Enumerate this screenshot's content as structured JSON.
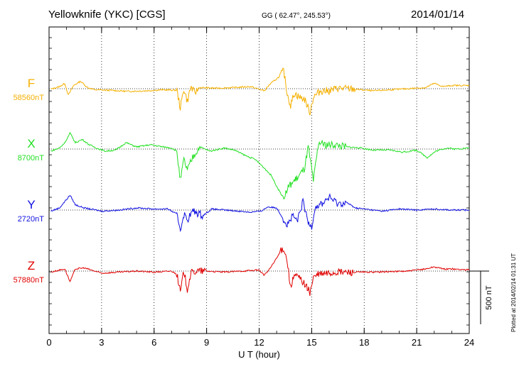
{
  "header": {
    "station": "Yellowknife (YKC)  [CGS]",
    "coords": "GG ( 62.47°, 245.53°)",
    "date": "2014/01/14"
  },
  "footer_note": "Plotted at 2014/02/14 01:31  UT",
  "chart_data": {
    "type": "line",
    "xlabel": "U T (hour)",
    "xlim": [
      0,
      24
    ],
    "xticks": [
      0,
      3,
      6,
      9,
      12,
      15,
      18,
      21,
      24
    ],
    "grid": "dotted vertical at 3-hour ticks",
    "scale_bar": {
      "label": "500 nT",
      "value_nT": 500
    },
    "series": [
      {
        "name": "F",
        "baseline_label": "58560nT",
        "color": "#f5b000",
        "points": [
          [
            0.1,
            -5
          ],
          [
            0.6,
            20
          ],
          [
            0.9,
            50
          ],
          [
            1.1,
            -60
          ],
          [
            1.4,
            30
          ],
          [
            1.8,
            70
          ],
          [
            2.2,
            10
          ],
          [
            2.6,
            -10
          ],
          [
            3.5,
            -15
          ],
          [
            4.5,
            -25
          ],
          [
            5.5,
            -20
          ],
          [
            6.5,
            -10
          ],
          [
            7.3,
            -15
          ],
          [
            7.5,
            -180
          ],
          [
            7.7,
            0
          ],
          [
            7.9,
            -120
          ],
          [
            8.1,
            20
          ],
          [
            8.3,
            -40
          ],
          [
            8.6,
            10
          ],
          [
            9.5,
            5
          ],
          [
            10.5,
            10
          ],
          [
            11.5,
            20
          ],
          [
            12.3,
            -20
          ],
          [
            12.6,
            40
          ],
          [
            12.9,
            80
          ],
          [
            13.2,
            120
          ],
          [
            13.4,
            170
          ],
          [
            13.6,
            -40
          ],
          [
            13.8,
            -160
          ],
          [
            14.0,
            -40
          ],
          [
            14.3,
            -80
          ],
          [
            14.6,
            -100
          ],
          [
            14.9,
            -220
          ],
          [
            15.1,
            -80
          ],
          [
            15.5,
            -20
          ],
          [
            16.0,
            -20
          ],
          [
            16.5,
            5
          ],
          [
            17.5,
            -5
          ],
          [
            18.5,
            -20
          ],
          [
            19.5,
            -10
          ],
          [
            20.5,
            0
          ],
          [
            21.5,
            10
          ],
          [
            22.0,
            50
          ],
          [
            22.5,
            20
          ],
          [
            23.0,
            30
          ],
          [
            24.0,
            30
          ]
        ]
      },
      {
        "name": "X",
        "baseline_label": "8700nT",
        "color": "#22e022",
        "points": [
          [
            0.1,
            -20
          ],
          [
            0.6,
            10
          ],
          [
            0.9,
            60
          ],
          [
            1.2,
            150
          ],
          [
            1.5,
            60
          ],
          [
            1.9,
            90
          ],
          [
            2.3,
            40
          ],
          [
            2.7,
            10
          ],
          [
            3.2,
            -20
          ],
          [
            3.8,
            -10
          ],
          [
            4.4,
            60
          ],
          [
            5.0,
            20
          ],
          [
            5.8,
            40
          ],
          [
            6.5,
            20
          ],
          [
            7.0,
            10
          ],
          [
            7.3,
            -20
          ],
          [
            7.5,
            -300
          ],
          [
            7.7,
            -100
          ],
          [
            7.9,
            -200
          ],
          [
            8.2,
            -80
          ],
          [
            8.6,
            20
          ],
          [
            9.2,
            -20
          ],
          [
            10.0,
            10
          ],
          [
            10.6,
            -10
          ],
          [
            11.2,
            -60
          ],
          [
            11.8,
            -100
          ],
          [
            12.3,
            -180
          ],
          [
            12.7,
            -250
          ],
          [
            13.1,
            -380
          ],
          [
            13.4,
            -460
          ],
          [
            13.7,
            -350
          ],
          [
            14.0,
            -300
          ],
          [
            14.3,
            -250
          ],
          [
            14.6,
            -180
          ],
          [
            14.8,
            20
          ],
          [
            15.1,
            -300
          ],
          [
            15.4,
            60
          ],
          [
            15.8,
            40
          ],
          [
            16.3,
            40
          ],
          [
            17.0,
            20
          ],
          [
            17.8,
            10
          ],
          [
            18.5,
            -10
          ],
          [
            19.5,
            -10
          ],
          [
            20.2,
            -30
          ],
          [
            21.0,
            -10
          ],
          [
            21.6,
            -80
          ],
          [
            22.1,
            -20
          ],
          [
            22.7,
            10
          ],
          [
            23.2,
            0
          ],
          [
            24.0,
            10
          ]
        ]
      },
      {
        "name": "Y",
        "baseline_label": "2720nT",
        "color": "#1010e0",
        "points": [
          [
            0.1,
            -10
          ],
          [
            0.6,
            20
          ],
          [
            0.9,
            80
          ],
          [
            1.2,
            140
          ],
          [
            1.5,
            50
          ],
          [
            2.0,
            20
          ],
          [
            3.0,
            -10
          ],
          [
            4.0,
            0
          ],
          [
            5.0,
            20
          ],
          [
            6.0,
            10
          ],
          [
            6.8,
            10
          ],
          [
            7.3,
            -40
          ],
          [
            7.5,
            -180
          ],
          [
            7.7,
            -40
          ],
          [
            7.9,
            -90
          ],
          [
            8.2,
            -10
          ],
          [
            8.8,
            -50
          ],
          [
            9.3,
            10
          ],
          [
            10.0,
            0
          ],
          [
            10.8,
            -10
          ],
          [
            11.5,
            -20
          ],
          [
            12.1,
            -10
          ],
          [
            12.5,
            30
          ],
          [
            13.0,
            20
          ],
          [
            13.3,
            -60
          ],
          [
            13.6,
            -140
          ],
          [
            13.9,
            -60
          ],
          [
            14.2,
            -100
          ],
          [
            14.5,
            80
          ],
          [
            14.8,
            -120
          ],
          [
            15.0,
            -150
          ],
          [
            15.2,
            30
          ],
          [
            15.6,
            60
          ],
          [
            16.0,
            120
          ],
          [
            16.5,
            60
          ],
          [
            17.0,
            70
          ],
          [
            17.5,
            20
          ],
          [
            18.0,
            10
          ],
          [
            19.0,
            -10
          ],
          [
            20.0,
            10
          ],
          [
            21.0,
            0
          ],
          [
            22.0,
            10
          ],
          [
            23.0,
            0
          ],
          [
            24.0,
            0
          ]
        ]
      },
      {
        "name": "Z",
        "baseline_label": "57880nT",
        "color": "#e00000",
        "points": [
          [
            0.1,
            -10
          ],
          [
            0.6,
            10
          ],
          [
            0.9,
            20
          ],
          [
            1.2,
            -100
          ],
          [
            1.5,
            20
          ],
          [
            2.0,
            30
          ],
          [
            3.0,
            -20
          ],
          [
            4.0,
            -10
          ],
          [
            5.0,
            0
          ],
          [
            6.0,
            -10
          ],
          [
            7.0,
            0
          ],
          [
            7.3,
            -30
          ],
          [
            7.5,
            -200
          ],
          [
            7.7,
            0
          ],
          [
            7.9,
            -170
          ],
          [
            8.1,
            -20
          ],
          [
            8.4,
            0
          ],
          [
            9.0,
            0
          ],
          [
            10.0,
            -10
          ],
          [
            11.0,
            0
          ],
          [
            12.0,
            10
          ],
          [
            12.3,
            -40
          ],
          [
            12.6,
            20
          ],
          [
            13.0,
            120
          ],
          [
            13.2,
            180
          ],
          [
            13.4,
            220
          ],
          [
            13.6,
            100
          ],
          [
            13.8,
            -160
          ],
          [
            14.0,
            -40
          ],
          [
            14.3,
            -60
          ],
          [
            14.6,
            -120
          ],
          [
            14.9,
            -200
          ],
          [
            15.1,
            -60
          ],
          [
            15.4,
            -30
          ],
          [
            16.0,
            -20
          ],
          [
            16.5,
            -10
          ],
          [
            17.5,
            -10
          ],
          [
            18.5,
            -10
          ],
          [
            19.5,
            -5
          ],
          [
            20.5,
            0
          ],
          [
            21.5,
            20
          ],
          [
            22.0,
            40
          ],
          [
            22.5,
            20
          ],
          [
            23.0,
            20
          ],
          [
            24.0,
            10
          ]
        ]
      }
    ]
  }
}
